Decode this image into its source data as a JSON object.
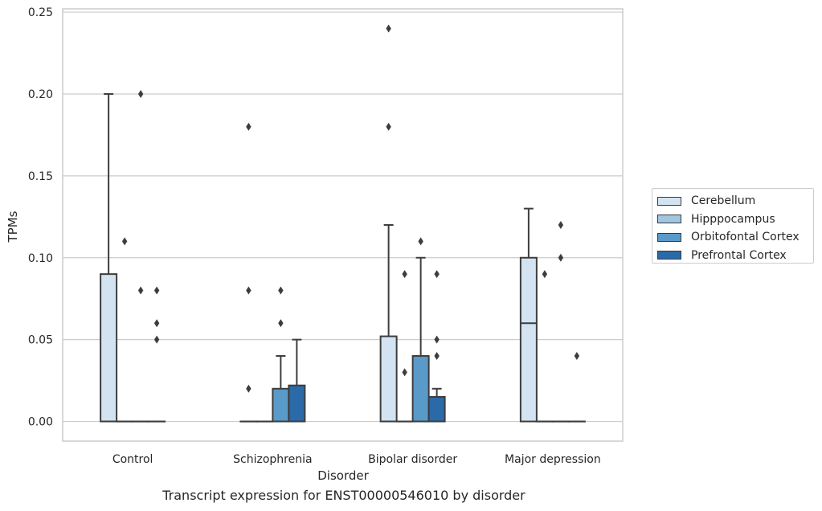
{
  "chart_data": {
    "type": "box",
    "title": "",
    "caption": "Transcript expression for ENST00000546010 by disorder",
    "xlabel": "Disorder",
    "ylabel": "TPMs",
    "categories": [
      "Control",
      "Schizophrenia",
      "Bipolar disorder",
      "Major depression"
    ],
    "ylim": [
      -0.012,
      0.252
    ],
    "yticks": [
      "0.00",
      "0.05",
      "0.10",
      "0.15",
      "0.20",
      "0.25"
    ],
    "grid": "horizontal",
    "legend_position": "right",
    "series": [
      {
        "name": "Cerebellum",
        "color": "#d3e3f1",
        "boxes": [
          {
            "q1": 0.0,
            "median": 0.0,
            "q3": 0.09,
            "whisker_low": 0.0,
            "whisker_high": 0.2,
            "outliers": []
          },
          {
            "q1": 0.0,
            "median": 0.0,
            "q3": 0.0,
            "whisker_low": 0.0,
            "whisker_high": 0.0,
            "outliers": [
              0.18,
              0.08,
              0.02
            ]
          },
          {
            "q1": 0.0,
            "median": 0.0,
            "q3": 0.052,
            "whisker_low": 0.0,
            "whisker_high": 0.12,
            "outliers": [
              0.24,
              0.18
            ]
          },
          {
            "q1": 0.0,
            "median": 0.06,
            "q3": 0.1,
            "whisker_low": 0.0,
            "whisker_high": 0.13,
            "outliers": []
          }
        ]
      },
      {
        "name": "Hipppocampus",
        "color": "#a0c6e0",
        "boxes": [
          {
            "q1": 0.0,
            "median": 0.0,
            "q3": 0.0,
            "whisker_low": 0.0,
            "whisker_high": 0.0,
            "outliers": [
              0.11
            ]
          },
          {
            "q1": 0.0,
            "median": 0.0,
            "q3": 0.0,
            "whisker_low": 0.0,
            "whisker_high": 0.0,
            "outliers": []
          },
          {
            "q1": 0.0,
            "median": 0.0,
            "q3": 0.0,
            "whisker_low": 0.0,
            "whisker_high": 0.0,
            "outliers": [
              0.09,
              0.03
            ]
          },
          {
            "q1": 0.0,
            "median": 0.0,
            "q3": 0.0,
            "whisker_low": 0.0,
            "whisker_high": 0.0,
            "outliers": [
              0.09
            ]
          }
        ]
      },
      {
        "name": "Orbitofontal Cortex",
        "color": "#5a9ac9",
        "boxes": [
          {
            "q1": 0.0,
            "median": 0.0,
            "q3": 0.0,
            "whisker_low": 0.0,
            "whisker_high": 0.0,
            "outliers": [
              0.2,
              0.08
            ]
          },
          {
            "q1": 0.0,
            "median": 0.0,
            "q3": 0.02,
            "whisker_low": 0.0,
            "whisker_high": 0.04,
            "outliers": [
              0.08,
              0.06
            ]
          },
          {
            "q1": 0.0,
            "median": 0.0,
            "q3": 0.04,
            "whisker_low": 0.0,
            "whisker_high": 0.1,
            "outliers": [
              0.11
            ]
          },
          {
            "q1": 0.0,
            "median": 0.0,
            "q3": 0.0,
            "whisker_low": 0.0,
            "whisker_high": 0.0,
            "outliers": [
              0.12,
              0.1
            ]
          }
        ]
      },
      {
        "name": "Prefrontal Cortex",
        "color": "#2b6aa8",
        "boxes": [
          {
            "q1": 0.0,
            "median": 0.0,
            "q3": 0.0,
            "whisker_low": 0.0,
            "whisker_high": 0.0,
            "outliers": [
              0.08,
              0.06,
              0.05
            ]
          },
          {
            "q1": 0.0,
            "median": 0.0,
            "q3": 0.022,
            "whisker_low": 0.0,
            "whisker_high": 0.05,
            "outliers": []
          },
          {
            "q1": 0.0,
            "median": 0.0,
            "q3": 0.015,
            "whisker_low": 0.0,
            "whisker_high": 0.02,
            "outliers": [
              0.09,
              0.05,
              0.04
            ]
          },
          {
            "q1": 0.0,
            "median": 0.0,
            "q3": 0.0,
            "whisker_low": 0.0,
            "whisker_high": 0.0,
            "outliers": [
              0.04
            ]
          }
        ]
      }
    ]
  }
}
